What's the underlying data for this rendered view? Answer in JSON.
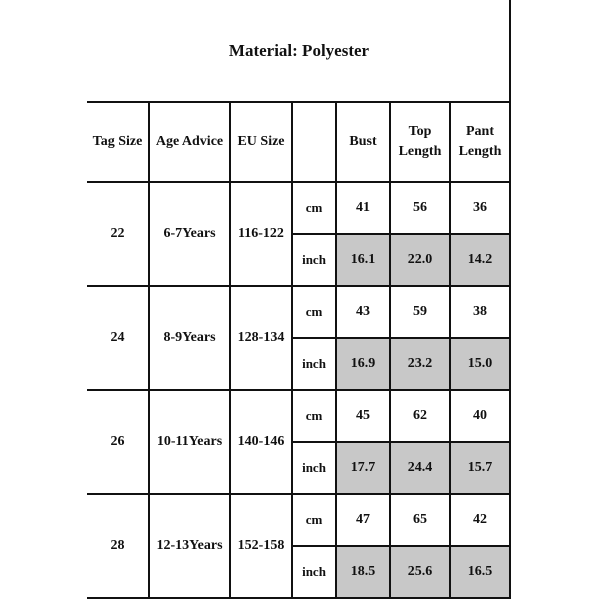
{
  "title": "Material: Polyester",
  "headers": [
    "Tag Size",
    "Age Advice",
    "EU Size",
    "",
    "Bust",
    "Top Length",
    "Pant Length"
  ],
  "highlight_color": "#c8c8c8",
  "rows": [
    {
      "tag": "22",
      "age": "6-7Years",
      "eu": "116-122",
      "cm": {
        "unit": "cm",
        "bust": "41",
        "top": "56",
        "pant": "36"
      },
      "inch": {
        "unit": "inch",
        "bust": "16.1",
        "top": "22.0",
        "pant": "14.2"
      }
    },
    {
      "tag": "24",
      "age": "8-9Years",
      "eu": "128-134",
      "cm": {
        "unit": "cm",
        "bust": "43",
        "top": "59",
        "pant": "38"
      },
      "inch": {
        "unit": "inch",
        "bust": "16.9",
        "top": "23.2",
        "pant": "15.0"
      }
    },
    {
      "tag": "26",
      "age": "10-11Years",
      "eu": "140-146",
      "cm": {
        "unit": "cm",
        "bust": "45",
        "top": "62",
        "pant": "40"
      },
      "inch": {
        "unit": "inch",
        "bust": "17.7",
        "top": "24.4",
        "pant": "15.7"
      }
    },
    {
      "tag": "28",
      "age": "12-13Years",
      "eu": "152-158",
      "cm": {
        "unit": "cm",
        "bust": "47",
        "top": "65",
        "pant": "42"
      },
      "inch": {
        "unit": "inch",
        "bust": "18.5",
        "top": "25.6",
        "pant": "16.5"
      }
    }
  ]
}
